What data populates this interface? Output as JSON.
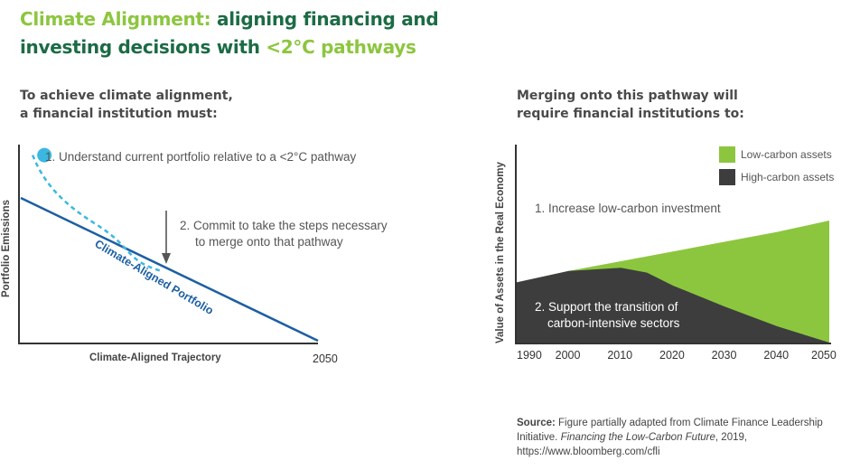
{
  "title": {
    "highlight": "Climate Alignment:",
    "line1_rest": " aligning financing and",
    "line2_start": "investing decisions with ",
    "line2_highlight": "<2°C pathways"
  },
  "left_panel": {
    "heading_line1": "To achieve climate alignment,",
    "heading_line2": "a financial institution must:",
    "step1": "1. Understand current portfolio relative to a <2°C pathway",
    "step2_line1": "2. Commit to take the steps necessary",
    "step2_line2": "to merge onto that pathway",
    "line_label": "Climate-Aligned Portfolio",
    "x_axis_label": "Climate-Aligned Trajectory",
    "x_end_label": "2050",
    "y_axis_label": "Portfolio Emissions"
  },
  "right_panel": {
    "heading_line1": "Merging onto this pathway will",
    "heading_line2": "require financial institutions to:",
    "annotation1": "1. Increase low-carbon investment",
    "annotation2_line1": "2. Support the transition of",
    "annotation2_line2": "carbon-intensive sectors",
    "y_axis_label": "Value of Assets in the Real Economy"
  },
  "chart_data": [
    {
      "type": "line",
      "title": "To achieve climate alignment, a financial institution must:",
      "xlabel": "Climate-Aligned Trajectory",
      "ylabel": "Portfolio Emissions",
      "x_tick_labels": [
        "2050"
      ],
      "series": [
        {
          "name": "Climate-Aligned Portfolio",
          "style": "solid",
          "x": [
            0,
            1
          ],
          "values": [
            1.0,
            0.0
          ]
        },
        {
          "name": "Current portfolio path",
          "style": "dashed",
          "x": [
            0.04,
            0.12,
            0.25,
            0.47
          ],
          "values": [
            1.3,
            1.02,
            0.82,
            0.49
          ]
        }
      ],
      "annotations": [
        "1. Understand current portfolio relative to a <2°C pathway",
        "2. Commit to take the steps necessary to merge onto that pathway"
      ]
    },
    {
      "type": "area",
      "title": "Merging onto this pathway will require financial institutions to:",
      "xlabel": "",
      "ylabel": "Value of Assets in the Real Economy",
      "categories": [
        1990,
        2000,
        2010,
        2020,
        2030,
        2040,
        2050
      ],
      "x": [
        1990,
        2000,
        2010,
        2015,
        2020,
        2030,
        2040,
        2050
      ],
      "series": [
        {
          "name": "High-carbon assets",
          "color": "#3d3d3d",
          "values": [
            37,
            44,
            46,
            43,
            35,
            22,
            10,
            0
          ]
        },
        {
          "name": "Low-carbon assets (total top)",
          "color": "#8cc63f",
          "values": [
            37,
            44,
            50,
            53,
            56,
            62,
            68,
            75
          ]
        }
      ],
      "legend": [
        {
          "label": "Low-carbon assets",
          "color": "#8cc63f"
        },
        {
          "label": "High-carbon assets",
          "color": "#3d3d3d"
        }
      ],
      "ylim": [
        0,
        100
      ],
      "annotations": [
        "1. Increase low-carbon investment",
        "2. Support the transition of carbon-intensive sectors"
      ]
    }
  ],
  "source": {
    "label": "Source:",
    "text1": " Figure partially adapted from Climate Finance Leadership Initiative. ",
    "italic": "Financing the Low-Carbon Future",
    "text2": ", 2019, https://www.bloomberg.com/cfli"
  }
}
